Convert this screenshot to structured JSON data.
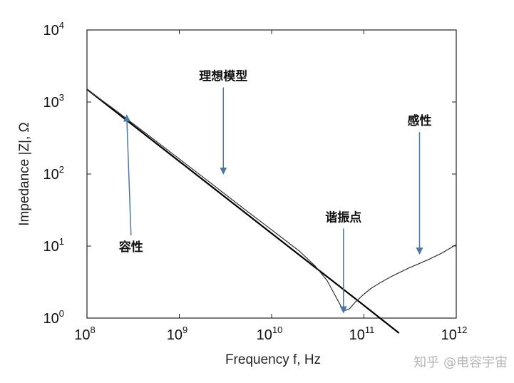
{
  "chart_data": {
    "type": "line",
    "scale": {
      "x": "log",
      "y": "log"
    },
    "xlim": [
      100000000.0,
      1000000000000.0
    ],
    "ylim": [
      1,
      10000
    ],
    "xticks": [
      {
        "value": 100000000.0,
        "base": "10",
        "exp": "8"
      },
      {
        "value": 1000000000.0,
        "base": "10",
        "exp": "9"
      },
      {
        "value": 10000000000.0,
        "base": "10",
        "exp": "10"
      },
      {
        "value": 100000000000.0,
        "base": "10",
        "exp": "11"
      },
      {
        "value": 1000000000000.0,
        "base": "10",
        "exp": "12"
      }
    ],
    "yticks": [
      {
        "value": 1,
        "base": "10",
        "exp": "0"
      },
      {
        "value": 10,
        "base": "10",
        "exp": "1"
      },
      {
        "value": 100,
        "base": "10",
        "exp": "2"
      },
      {
        "value": 1000,
        "base": "10",
        "exp": "3"
      },
      {
        "value": 10000,
        "base": "10",
        "exp": "4"
      }
    ],
    "xlabel": "Frequency f, Hz",
    "ylabel": "Impedance |Z|, Ω",
    "grid": false,
    "series": [
      {
        "style": "solid-thick",
        "color": "#000000",
        "x": [
          100000000.0,
          1000000000.0,
          10000000000.0,
          100000000000.0,
          240000000000.0
        ],
        "y": [
          1500,
          150,
          15,
          1.5,
          0.62
        ]
      },
      {
        "style": "solid-thin",
        "color": "#333333",
        "x": [
          100000000.0,
          200000000.0,
          500000000.0,
          1000000000.0,
          2000000000.0,
          5000000000.0,
          10000000000.0,
          20000000000.0,
          30000000000.0,
          40000000000.0,
          50000000000.0,
          60000000000.0,
          70000000000.0,
          80000000000.0,
          100000000000.0,
          120000000000.0,
          150000000000.0,
          200000000000.0,
          300000000000.0,
          500000000000.0,
          700000000000.0,
          1000000000000.0
        ],
        "y": [
          1500,
          780,
          320,
          162,
          82,
          33,
          16.8,
          8.5,
          5.2,
          3.3,
          1.95,
          1.25,
          1.35,
          1.65,
          2.15,
          2.6,
          3.1,
          3.8,
          4.9,
          6.5,
          8.0,
          10.5
        ]
      }
    ],
    "annotations": [
      {
        "text": "理想模型",
        "x": 3000000000.0,
        "y": 2000,
        "arrow_to": {
          "x": 3000000000.0,
          "y": 110
        }
      },
      {
        "text": "容性",
        "x": 300000000.0,
        "y": 8.5,
        "arrow_to": {
          "x": 270000000.0,
          "y": 600
        }
      },
      {
        "text": "谐振点",
        "x": 60000000000.0,
        "y": 22,
        "arrow_to": {
          "x": 60000000000.0,
          "y": 1.3
        }
      },
      {
        "text": "感性",
        "x": 400000000000.0,
        "y": 480,
        "arrow_to": {
          "x": 400000000000.0,
          "y": 8.5
        }
      }
    ],
    "arrow_color": "#4a78a8"
  },
  "watermark": "知乎 @电容宇宙"
}
